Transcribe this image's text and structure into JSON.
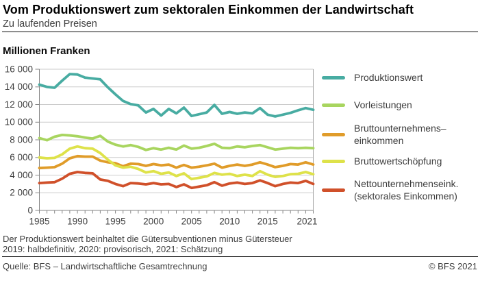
{
  "header": {
    "title": "Vom Produktionswert zum sektoralen Einkommen der Landwirtschaft",
    "subtitle": "Zu laufenden Preisen"
  },
  "chart": {
    "unit_label": "Millionen Franken"
  },
  "chart_data": {
    "type": "line",
    "title": "Vom Produktionswert zum sektoralen Einkommen der Landwirtschaft",
    "subtitle": "Zu laufenden Preisen",
    "ylabel": "Millionen Franken",
    "xlabel": "",
    "ylim": [
      0,
      16000
    ],
    "x_range": [
      1985,
      2021
    ],
    "x_step": 1,
    "grid": "horizontal",
    "legend_position": "right",
    "y_ticks": [
      {
        "value": 0,
        "label": "0"
      },
      {
        "value": 2000,
        "label": "2 000"
      },
      {
        "value": 4000,
        "label": "4 000"
      },
      {
        "value": 6000,
        "label": "6 000"
      },
      {
        "value": 8000,
        "label": "8 000"
      },
      {
        "value": 10000,
        "label": "10 000"
      },
      {
        "value": 12000,
        "label": "12 000"
      },
      {
        "value": 14000,
        "label": "14 000"
      },
      {
        "value": 16000,
        "label": "16 000"
      }
    ],
    "x_ticks": [
      {
        "year": 1985,
        "label": "1985"
      },
      {
        "year": 1990,
        "label": "1990"
      },
      {
        "year": 1995,
        "label": "1995"
      },
      {
        "year": 2000,
        "label": "2000"
      },
      {
        "year": 2005,
        "label": "2005"
      },
      {
        "year": 2010,
        "label": "2010"
      },
      {
        "year": 2015,
        "label": "2015"
      },
      {
        "year": 2021,
        "label": "2021"
      }
    ],
    "series": [
      {
        "id": "produktionswert",
        "name": "Produktionswert",
        "legend_lines": [
          "Produktionswert"
        ],
        "color": "#48aca2",
        "values": [
          14250,
          14000,
          13900,
          14700,
          15450,
          15400,
          15050,
          14950,
          14850,
          13950,
          13150,
          12400,
          12050,
          11900,
          11100,
          11500,
          10750,
          11500,
          11000,
          11650,
          10700,
          10900,
          11100,
          11950,
          10950,
          11150,
          10950,
          11100,
          11000,
          11600,
          10850,
          10650,
          10850,
          11050,
          11350,
          11600,
          11400
        ]
      },
      {
        "id": "vorleistungen",
        "name": "Vorleistungen",
        "legend_lines": [
          "Vorleistungen"
        ],
        "color": "#a8d55f",
        "values": [
          8200,
          7950,
          8350,
          8550,
          8500,
          8400,
          8250,
          8150,
          8450,
          7800,
          7450,
          7250,
          7400,
          7200,
          6850,
          7050,
          6900,
          7100,
          6900,
          7350,
          7000,
          7100,
          7300,
          7550,
          7100,
          7050,
          7250,
          7150,
          7300,
          7400,
          7150,
          6900,
          7000,
          7100,
          7050,
          7100,
          7050
        ]
      },
      {
        "id": "bruttounternehmenseinkommen",
        "name": "Bruttounternehmenseinkommen",
        "legend_lines": [
          "Bruttounternehmens–",
          "einkommen"
        ],
        "color": "#e09c2a",
        "values": [
          4800,
          4850,
          4900,
          5300,
          5900,
          6150,
          6100,
          6100,
          5650,
          5450,
          5350,
          5000,
          5300,
          5250,
          5050,
          5250,
          5100,
          5200,
          4850,
          5150,
          4850,
          4950,
          5100,
          5300,
          4850,
          5050,
          5200,
          5050,
          5200,
          5450,
          5200,
          4900,
          5050,
          5250,
          5200,
          5450,
          5200
        ]
      },
      {
        "id": "bruttowertschoepfung",
        "name": "Bruttowertschöpfung",
        "legend_lines": [
          "Bruttowertschöpfung"
        ],
        "color": "#dee24a",
        "values": [
          6000,
          5900,
          5950,
          6350,
          7000,
          7250,
          7050,
          7000,
          6500,
          5750,
          5100,
          4850,
          4950,
          4700,
          4300,
          4450,
          4150,
          4300,
          3900,
          4200,
          3550,
          3700,
          3850,
          4250,
          4050,
          4150,
          3900,
          4050,
          3900,
          4450,
          4050,
          3800,
          3900,
          4100,
          4150,
          4350,
          4100
        ]
      },
      {
        "id": "nettounternehmenseinkommen",
        "name": "Nettounternehmenseink. (sektorales Einkommen)",
        "legend_lines": [
          "Nettounternehmenseink.",
          "(sektorales Einkommen)"
        ],
        "color": "#d0502a",
        "values": [
          3100,
          3150,
          3200,
          3600,
          4150,
          4350,
          4250,
          4200,
          3500,
          3350,
          3000,
          2750,
          3100,
          3050,
          2950,
          3100,
          2950,
          3000,
          2650,
          2950,
          2550,
          2700,
          2850,
          3200,
          2800,
          3050,
          3150,
          3000,
          3100,
          3400,
          3100,
          2750,
          3000,
          3150,
          3100,
          3350,
          3000
        ]
      }
    ]
  },
  "footnotes": [
    "Der Produktionswert beinhaltet die Gütersubventionen minus Gütersteuer",
    "2019: halbdefinitiv, 2020: provisorisch, 2021: Schätzung"
  ],
  "source": {
    "left": "Quelle: BFS – Landwirtschaftliche Gesamtrechnung",
    "right": "© BFS 2021"
  }
}
